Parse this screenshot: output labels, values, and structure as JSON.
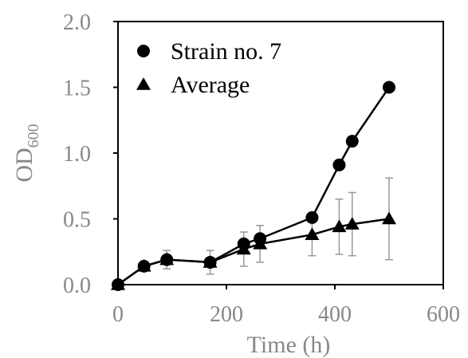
{
  "chart_data": {
    "type": "line",
    "title": "",
    "xlabel": "Time (h)",
    "ylabel": "OD",
    "ylabel_subscript": "600",
    "xlim": [
      0,
      600
    ],
    "ylim": [
      0,
      2.0
    ],
    "xticks": [
      0,
      200,
      400,
      600
    ],
    "xtick_labels": [
      "0",
      "200",
      "400",
      "600"
    ],
    "yticks": [
      0,
      0.5,
      1.0,
      1.5,
      2.0
    ],
    "ytick_labels": [
      "0.0",
      "0.5",
      "1.0",
      "1.5",
      "2.0"
    ],
    "grid": false,
    "legend_position": "top-left",
    "series": [
      {
        "name": "Strain no. 7",
        "marker": "circle",
        "color": "#000000",
        "x": [
          0,
          48,
          90,
          170,
          232,
          262,
          358,
          408,
          432,
          500
        ],
        "y": [
          0.0,
          0.14,
          0.19,
          0.17,
          0.31,
          0.35,
          0.51,
          0.91,
          1.09,
          1.5
        ]
      },
      {
        "name": "Average",
        "marker": "triangle",
        "color": "#000000",
        "x": [
          0,
          48,
          90,
          170,
          232,
          262,
          358,
          408,
          432,
          500
        ],
        "y": [
          0.0,
          0.14,
          0.19,
          0.17,
          0.27,
          0.31,
          0.38,
          0.44,
          0.46,
          0.5
        ],
        "error": [
          0.0,
          0.03,
          0.07,
          0.09,
          0.13,
          0.14,
          0.16,
          0.21,
          0.24,
          0.31
        ]
      }
    ]
  }
}
